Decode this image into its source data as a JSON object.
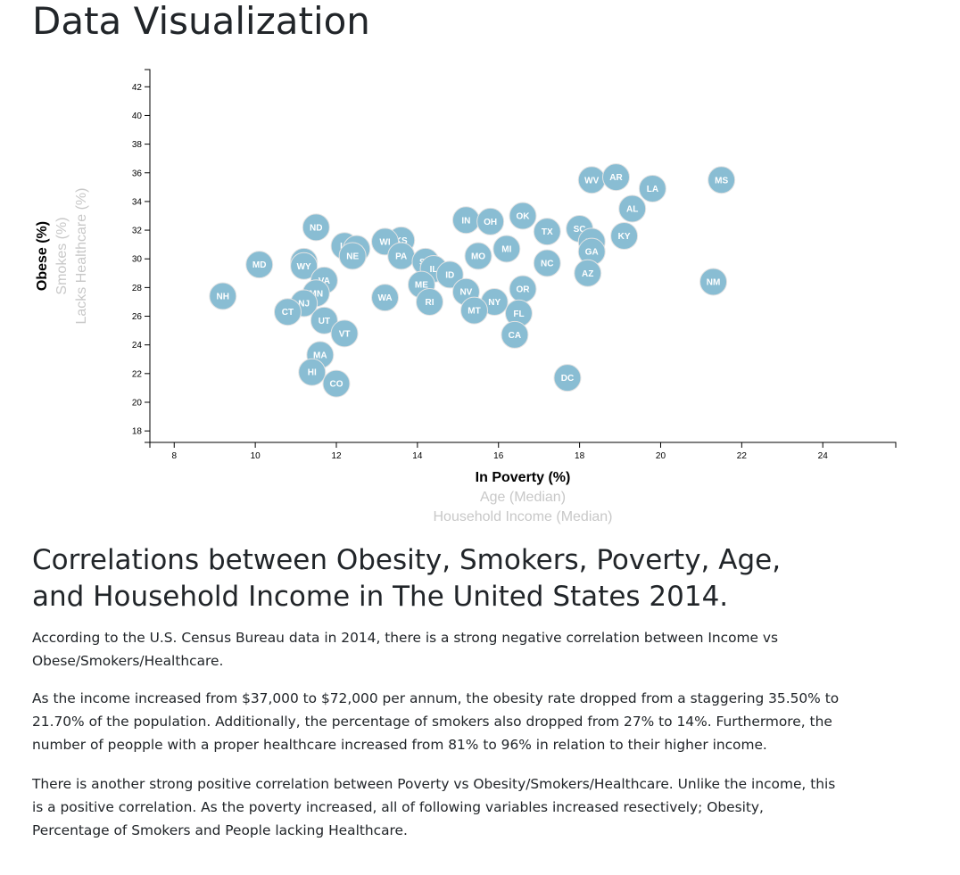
{
  "page": {
    "title": "Data Visualization",
    "section_title": "Correlations between Obesity, Smokers, Poverty, Age, and Household Income in The United States 2014.",
    "paragraphs": [
      "According to the U.S. Census Bureau data in 2014, there is a strong negative correlation between Income vs Obese/Smokers/Healthcare.",
      "As the income increased from $37,000 to $72,000 per annum, the obesity rate dropped from a staggering 35.50% to 21.70% of the population. Additionally, the percentage of smokers also dropped from 27% to 14%. Furthermore, the number of peopple with a proper healthcare increased from 81% to 96% in relation to their higher income.",
      "There is another strong positive correlation between Poverty vs Obesity/Smokers/Healthcare. Unlike the income, this is a positive correlation. As the poverty increased, all of following variables increased resectively; Obesity, Percentage of Smokers and People lacking Healthcare."
    ]
  },
  "chart_data": {
    "type": "scatter",
    "x_axis_titles": [
      {
        "label": "In Poverty (%)",
        "active": true
      },
      {
        "label": "Age (Median)",
        "active": false
      },
      {
        "label": "Household Income (Median)",
        "active": false
      }
    ],
    "y_axis_titles": [
      {
        "label": "Obese (%)",
        "active": true
      },
      {
        "label": "Smokes (%)",
        "active": false
      },
      {
        "label": "Lacks Healthcare (%)",
        "active": false
      }
    ],
    "xlim": [
      7.4,
      25.8
    ],
    "ylim": [
      17.2,
      43.2
    ],
    "x_ticks": [
      8,
      10,
      12,
      14,
      16,
      18,
      20,
      22,
      24
    ],
    "y_ticks": [
      18,
      20,
      22,
      24,
      26,
      28,
      30,
      32,
      34,
      36,
      38,
      40,
      42
    ],
    "grid": false,
    "colors": {
      "marker": "#89bdd3",
      "marker_stroke": "#e3e3e3",
      "marker_text": "#ffffff",
      "active_title": "#000000",
      "inactive_title": "#c8c8c8"
    },
    "points": [
      {
        "abbr": "WV",
        "x": 18.3,
        "y": 35.5
      },
      {
        "abbr": "AR",
        "x": 18.9,
        "y": 35.7
      },
      {
        "abbr": "MS",
        "x": 21.5,
        "y": 35.5
      },
      {
        "abbr": "LA",
        "x": 19.8,
        "y": 34.9
      },
      {
        "abbr": "AL",
        "x": 19.3,
        "y": 33.5
      },
      {
        "abbr": "OK",
        "x": 16.6,
        "y": 33.0
      },
      {
        "abbr": "IN",
        "x": 15.2,
        "y": 32.7
      },
      {
        "abbr": "OH",
        "x": 15.8,
        "y": 32.6
      },
      {
        "abbr": "ND",
        "x": 11.5,
        "y": 32.2
      },
      {
        "abbr": "TX",
        "x": 17.2,
        "y": 31.9
      },
      {
        "abbr": "SC",
        "x": 18.0,
        "y": 32.1
      },
      {
        "abbr": "KY",
        "x": 19.1,
        "y": 31.6
      },
      {
        "abbr": "TN",
        "x": 18.3,
        "y": 31.2
      },
      {
        "abbr": "GA",
        "x": 18.3,
        "y": 30.5
      },
      {
        "abbr": "KS",
        "x": 13.6,
        "y": 31.3
      },
      {
        "abbr": "WI",
        "x": 13.2,
        "y": 31.2
      },
      {
        "abbr": "IA",
        "x": 12.2,
        "y": 30.9
      },
      {
        "abbr": "DE",
        "x": 12.5,
        "y": 30.7
      },
      {
        "abbr": "NE",
        "x": 12.4,
        "y": 30.2
      },
      {
        "abbr": "PA",
        "x": 13.6,
        "y": 30.2
      },
      {
        "abbr": "MO",
        "x": 15.5,
        "y": 30.2
      },
      {
        "abbr": "MI",
        "x": 16.2,
        "y": 30.7
      },
      {
        "abbr": "NC",
        "x": 17.2,
        "y": 29.7
      },
      {
        "abbr": "SD",
        "x": 14.2,
        "y": 29.8
      },
      {
        "abbr": "IL",
        "x": 14.4,
        "y": 29.3
      },
      {
        "abbr": "ID",
        "x": 14.8,
        "y": 28.9
      },
      {
        "abbr": "AZ",
        "x": 18.2,
        "y": 29.0
      },
      {
        "abbr": "MD",
        "x": 10.1,
        "y": 29.6
      },
      {
        "abbr": "AK",
        "x": 11.2,
        "y": 29.8
      },
      {
        "abbr": "WY",
        "x": 11.2,
        "y": 29.5
      },
      {
        "abbr": "VA",
        "x": 11.7,
        "y": 28.5
      },
      {
        "abbr": "NM",
        "x": 21.3,
        "y": 28.4
      },
      {
        "abbr": "ME",
        "x": 14.1,
        "y": 28.2
      },
      {
        "abbr": "OR",
        "x": 16.6,
        "y": 27.9
      },
      {
        "abbr": "NV",
        "x": 15.2,
        "y": 27.7
      },
      {
        "abbr": "MN",
        "x": 11.5,
        "y": 27.6
      },
      {
        "abbr": "WA",
        "x": 13.2,
        "y": 27.3
      },
      {
        "abbr": "NH",
        "x": 9.2,
        "y": 27.4
      },
      {
        "abbr": "RI",
        "x": 14.3,
        "y": 27.0
      },
      {
        "abbr": "NY",
        "x": 15.9,
        "y": 27.0
      },
      {
        "abbr": "NJ",
        "x": 11.2,
        "y": 26.9
      },
      {
        "abbr": "MT",
        "x": 15.4,
        "y": 26.4
      },
      {
        "abbr": "CT",
        "x": 10.8,
        "y": 26.3
      },
      {
        "abbr": "FL",
        "x": 16.5,
        "y": 26.2
      },
      {
        "abbr": "UT",
        "x": 11.7,
        "y": 25.7
      },
      {
        "abbr": "VT",
        "x": 12.2,
        "y": 24.8
      },
      {
        "abbr": "CA",
        "x": 16.4,
        "y": 24.7
      },
      {
        "abbr": "MA",
        "x": 11.6,
        "y": 23.3
      },
      {
        "abbr": "HI",
        "x": 11.4,
        "y": 22.1
      },
      {
        "abbr": "DC",
        "x": 17.7,
        "y": 21.7
      },
      {
        "abbr": "CO",
        "x": 12.0,
        "y": 21.3
      }
    ]
  }
}
